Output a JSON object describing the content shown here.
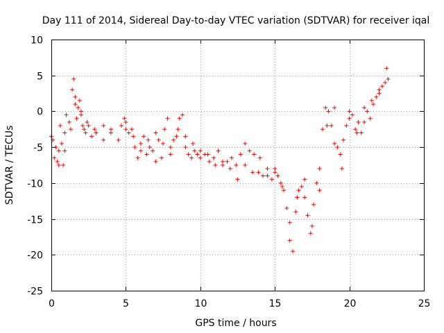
{
  "chart_data": {
    "type": "scatter",
    "title": "Day 111 of 2014, Sidereal Day-to-day VTEC variation (SDTVAR) for receiver iqal",
    "xlabel": "GPS time / hours",
    "ylabel": "SDTVAR / TECUs",
    "xlim": [
      0,
      25
    ],
    "ylim": [
      -25,
      10
    ],
    "x_ticks": [
      0,
      5,
      10,
      15,
      20,
      25
    ],
    "y_ticks": [
      -25,
      -20,
      -15,
      -10,
      -5,
      0,
      5,
      10
    ],
    "grid": true,
    "marker": "plus",
    "color": "#ff0000",
    "series": [
      {
        "x": [
          0.0,
          0.2,
          0.4,
          0.5,
          0.6,
          0.7,
          0.8,
          0.9,
          1.0,
          1.2,
          1.4,
          1.5,
          1.6,
          1.7,
          1.8,
          1.9,
          2.0,
          2.1,
          2.2,
          2.3,
          2.5,
          2.7,
          2.9,
          3.5,
          3.5,
          4.0,
          4.5,
          4.7,
          4.9,
          5.0,
          5.2,
          5.4,
          5.6,
          5.8,
          6.0,
          6.2,
          6.4,
          6.6,
          6.8,
          7.0,
          7.2,
          7.4,
          7.6,
          7.8,
          8.0,
          8.2,
          8.4,
          8.6,
          8.8,
          9.0,
          9.2,
          9.4,
          9.6,
          9.8,
          10.0,
          10.3,
          10.6,
          10.9,
          11.2,
          11.5,
          11.8,
          12.1,
          12.4,
          12.7,
          13.0,
          13.3,
          13.6,
          13.9,
          14.2,
          14.5,
          14.8,
          15.0,
          15.2,
          15.4,
          15.6,
          15.8,
          16.0,
          16.2,
          16.4,
          16.6,
          16.8,
          17.0,
          17.2,
          17.4,
          17.6,
          17.8,
          18.0,
          18.2,
          18.4,
          18.6,
          18.8,
          19.0,
          19.2,
          19.4,
          19.6,
          19.8,
          20.0,
          20.2,
          20.4,
          20.6,
          20.8,
          21.0,
          21.2,
          21.4,
          21.6,
          21.8,
          22.0,
          22.2,
          22.4,
          22.6
        ],
        "y": [
          -3.5,
          -6.5,
          -7.0,
          -5.5,
          -2.0,
          -4.5,
          -7.5,
          -3.0,
          -0.5,
          -1.5,
          3.0,
          4.5,
          1.0,
          -1.0,
          0.5,
          1.5,
          -0.5,
          -2.0,
          -2.5,
          -3.0,
          -2.0,
          -3.5,
          -2.5,
          -2.0,
          -4.0,
          -2.5,
          -4.0,
          -2.0,
          -1.0,
          -1.5,
          -3.0,
          -2.5,
          -5.0,
          -6.5,
          -4.5,
          -3.5,
          -6.0,
          -5.0,
          -5.5,
          -3.0,
          -4.0,
          -6.5,
          -2.5,
          -1.0,
          -5.0,
          -4.0,
          -3.5,
          -1.0,
          -0.5,
          -5.0,
          -6.0,
          -6.5,
          -5.5,
          -6.0,
          -6.5,
          -6.0,
          -7.0,
          -6.5,
          -5.5,
          -7.5,
          -7.0,
          -6.5,
          -7.5,
          -6.0,
          -4.5,
          -5.5,
          -6.0,
          -8.5,
          -9.0,
          -8.0,
          -9.5,
          -8.0,
          -9.0,
          -10.0,
          -11.0,
          -13.5,
          -18.0,
          -19.5,
          -14.0,
          -11.0,
          -10.5,
          -12.0,
          -14.5,
          -17.0,
          -13.0,
          -10.0,
          -8.0,
          -2.5,
          0.5,
          0.0,
          -2.0,
          -4.5,
          -5.0,
          -6.0,
          -4.0,
          -2.0,
          -1.0,
          -0.5,
          -2.5,
          -1.5,
          -3.0,
          -1.5,
          0.0,
          -1.0,
          1.0,
          2.0,
          2.5,
          3.5,
          4.0,
          4.5
        ]
      },
      {
        "x": [
          0.1,
          0.3,
          0.5,
          0.9,
          1.3,
          1.6,
          2.0,
          2.4,
          3.0,
          4.0,
          5.0,
          5.5,
          6.0,
          6.5,
          7.0,
          7.5,
          8.0,
          8.5,
          9.0,
          9.5,
          10.0,
          10.5,
          11.0,
          11.5,
          12.0,
          12.5,
          13.0,
          13.5,
          14.0,
          14.5,
          15.0,
          15.5,
          16.0,
          16.5,
          17.0,
          17.5,
          18.0,
          18.5,
          19.0,
          19.5,
          20.0,
          20.5,
          21.0,
          21.5,
          22.0,
          22.5
        ],
        "y": [
          -4.0,
          -5.0,
          -7.5,
          -5.5,
          -2.5,
          2.0,
          0.0,
          -1.5,
          -3.0,
          -3.0,
          -2.5,
          -3.5,
          -5.5,
          -4.0,
          -7.0,
          -4.5,
          -6.0,
          -2.5,
          -3.5,
          -4.5,
          -5.5,
          -6.0,
          -7.5,
          -7.0,
          -8.0,
          -9.5,
          -7.5,
          -8.5,
          -6.5,
          -9.0,
          -8.5,
          -10.5,
          -15.5,
          -12.0,
          -9.5,
          -16.0,
          -11.0,
          -2.0,
          0.5,
          -8.0,
          0.0,
          -3.0,
          0.5,
          1.5,
          3.0,
          6.0
        ]
      }
    ]
  }
}
